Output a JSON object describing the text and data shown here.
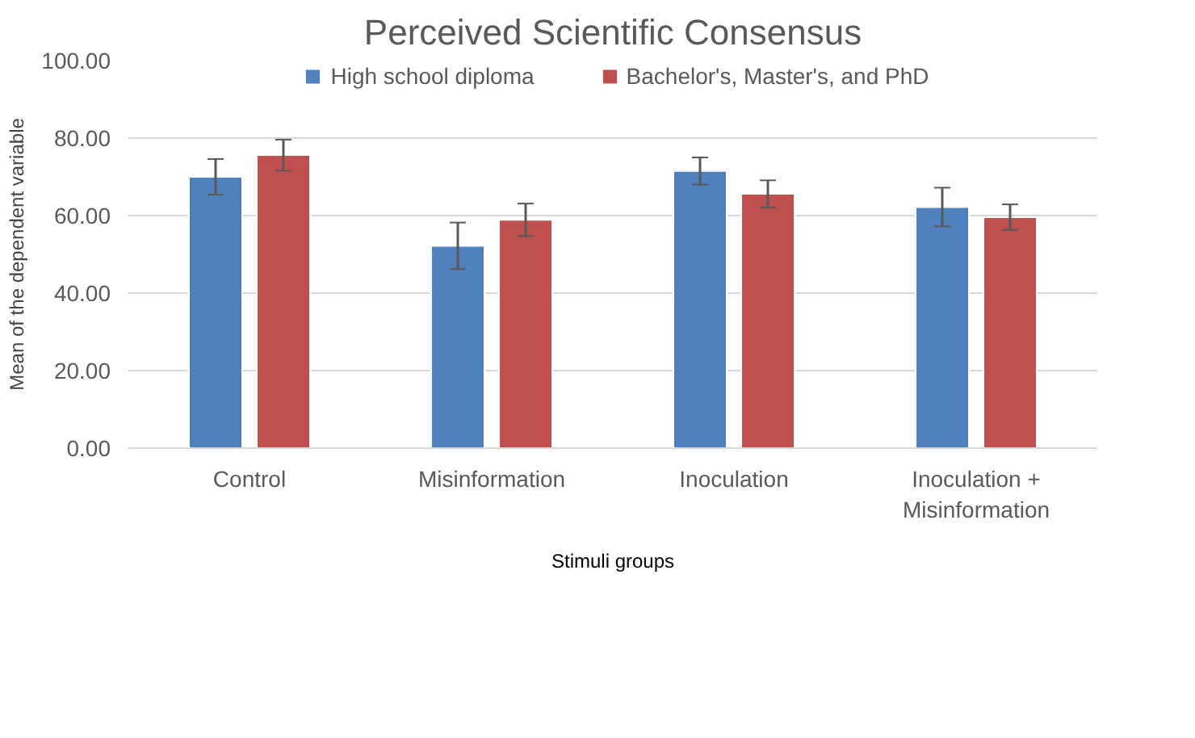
{
  "chart_data": {
    "type": "bar",
    "title": "Perceived Scientific Consensus",
    "xlabel": "Stimuli groups",
    "ylabel": "Mean of the dependent variable",
    "categories": [
      "Control",
      "Misinformation",
      "Inoculation",
      "Inoculation + Misinformation"
    ],
    "series": [
      {
        "name": "High school diploma",
        "color": "#4f81bd",
        "values": [
          70,
          52.2,
          71.5,
          62.2
        ],
        "errors": [
          4.6,
          6,
          3.5,
          5
        ]
      },
      {
        "name": "Bachelor's, Master's, and PhD",
        "color": "#c0504d",
        "values": [
          75.6,
          58.9,
          65.6,
          59.6
        ],
        "errors": [
          4,
          4.2,
          3.5,
          3.3
        ]
      }
    ],
    "ylim": [
      0,
      100
    ],
    "yticks": [
      {
        "value": 0,
        "label": "0.00"
      },
      {
        "value": 20,
        "label": "20.00"
      },
      {
        "value": 40,
        "label": "40.00"
      },
      {
        "value": 60,
        "label": "60.00"
      },
      {
        "value": 80,
        "label": "80.00"
      },
      {
        "value": 100,
        "label": "100.00"
      }
    ],
    "grid": "y",
    "legend": "top"
  }
}
